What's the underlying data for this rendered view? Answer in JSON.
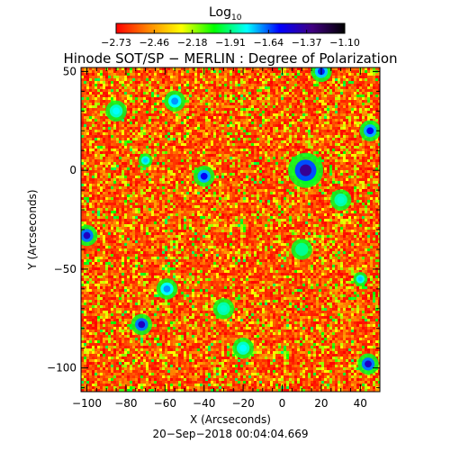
{
  "colorbar": {
    "label_main": "Log",
    "label_sub": "10",
    "ticks": [
      "−2.73",
      "−2.46",
      "−2.18",
      "−1.91",
      "−1.64",
      "−1.37",
      "−1.10"
    ]
  },
  "timestamp": "20−Sep−2018 00:04:04.669",
  "chart_data": {
    "type": "heatmap",
    "title": "Hinode SOT/SP − MERLIN : Degree of Polarization",
    "xlabel": "X (Arcseconds)",
    "ylabel": "Y (Arcseconds)",
    "xlim": [
      -103,
      50
    ],
    "ylim": [
      -112,
      52
    ],
    "x_ticks": [
      -100,
      -80,
      -60,
      -40,
      -20,
      0,
      20,
      40
    ],
    "y_ticks": [
      50,
      0,
      -50,
      -100
    ],
    "x_tick_labels": [
      "−100",
      "−80",
      "−60",
      "−40",
      "−20",
      "0",
      "20",
      "40"
    ],
    "y_tick_labels": [
      "50",
      "0",
      "−50",
      "−100"
    ],
    "value_range": [
      -2.73,
      -1.1
    ],
    "value_scale": "log10",
    "colormap": [
      "#ff0000",
      "#ff8800",
      "#ffff00",
      "#00ff00",
      "#00ffff",
      "#0000ff",
      "#400080",
      "#000000"
    ],
    "typical_value": -2.55,
    "features": [
      {
        "x": 13,
        "y": -2,
        "level": -1.1,
        "r": 3
      },
      {
        "x": 12,
        "y": 0,
        "level": -1.37,
        "r": 5
      },
      {
        "x": -40,
        "y": -3,
        "level": -1.55,
        "r": 3
      },
      {
        "x": -72,
        "y": -78,
        "level": -1.45,
        "r": 3
      },
      {
        "x": -100,
        "y": -33,
        "level": -1.45,
        "r": 3
      },
      {
        "x": 45,
        "y": 20,
        "level": -1.55,
        "r": 3
      },
      {
        "x": 44,
        "y": -98,
        "level": -1.45,
        "r": 3
      },
      {
        "x": -59,
        "y": -60,
        "level": -1.7,
        "r": 3
      },
      {
        "x": -70,
        "y": 5,
        "level": -1.75,
        "r": 2
      },
      {
        "x": 20,
        "y": 50,
        "level": -1.6,
        "r": 3
      },
      {
        "x": -85,
        "y": 30,
        "level": -1.8,
        "r": 3
      },
      {
        "x": 40,
        "y": -55,
        "level": -1.75,
        "r": 2
      },
      {
        "x": -20,
        "y": -90,
        "level": -1.8,
        "r": 3
      },
      {
        "x": 30,
        "y": -15,
        "level": -1.85,
        "r": 3
      },
      {
        "x": -55,
        "y": 35,
        "level": -1.7,
        "r": 3
      },
      {
        "x": 10,
        "y": -40,
        "level": -1.9,
        "r": 3
      },
      {
        "x": -30,
        "y": -70,
        "level": -1.85,
        "r": 3
      }
    ]
  }
}
